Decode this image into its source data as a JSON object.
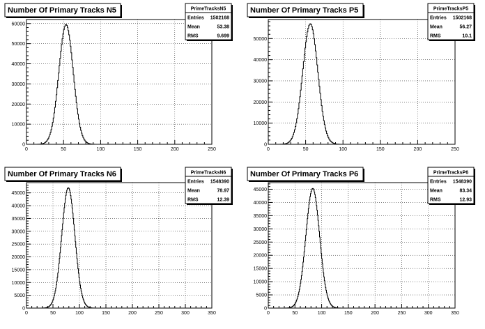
{
  "chart_data": [
    {
      "type": "histogram",
      "title": "Number Of Primary Tracks N5",
      "xlim": [
        0,
        250
      ],
      "ylim": [
        0,
        62000
      ],
      "x_ticks": [
        0,
        50,
        100,
        150,
        200,
        250
      ],
      "y_ticks": [
        0,
        10000,
        20000,
        30000,
        40000,
        50000,
        60000
      ],
      "grid": true,
      "stats": {
        "name": "PrimeTracksN5",
        "entries_label": "Entries",
        "entries": "1502168",
        "mean_label": "Mean",
        "mean": "53.38",
        "rms_label": "RMS",
        "rms": "9.699"
      },
      "peak": 59500,
      "center": 53.38,
      "sigma": 9.7
    },
    {
      "type": "histogram",
      "title": "Number Of Primary Tracks P5",
      "xlim": [
        0,
        250
      ],
      "ylim": [
        0,
        59000
      ],
      "x_ticks": [
        0,
        50,
        100,
        150,
        200,
        250
      ],
      "y_ticks": [
        0,
        10000,
        20000,
        30000,
        40000,
        50000
      ],
      "grid": true,
      "stats": {
        "name": "PrimeTracksP5",
        "entries_label": "Entries",
        "entries": "1502168",
        "mean_label": "Mean",
        "mean": "56.27",
        "rms_label": "RMS",
        "rms": "10.1"
      },
      "peak": 57000,
      "center": 56.27,
      "sigma": 10.1
    },
    {
      "type": "histogram",
      "title": "Number Of Primary Tracks N6",
      "xlim": [
        0,
        350
      ],
      "ylim": [
        0,
        49000
      ],
      "x_ticks": [
        0,
        50,
        100,
        150,
        200,
        250,
        300,
        350
      ],
      "y_ticks": [
        0,
        5000,
        10000,
        15000,
        20000,
        25000,
        30000,
        35000,
        40000,
        45000
      ],
      "grid": true,
      "stats": {
        "name": "PrimeTracksN6",
        "entries_label": "Entries",
        "entries": "1548390",
        "mean_label": "Mean",
        "mean": "78.97",
        "rms_label": "RMS",
        "rms": "12.39"
      },
      "peak": 47000,
      "center": 78.97,
      "sigma": 12.4
    },
    {
      "type": "histogram",
      "title": "Number Of Primary Tracks P6",
      "xlim": [
        0,
        350
      ],
      "ylim": [
        0,
        47500
      ],
      "x_ticks": [
        0,
        50,
        100,
        150,
        200,
        250,
        300,
        350
      ],
      "y_ticks": [
        0,
        5000,
        10000,
        15000,
        20000,
        25000,
        30000,
        35000,
        40000,
        45000
      ],
      "grid": true,
      "stats": {
        "name": "PrimeTracksP6",
        "entries_label": "Entries",
        "entries": "1548390",
        "mean_label": "Mean",
        "mean": "83.34",
        "rms_label": "RMS",
        "rms": "12.93"
      },
      "peak": 45300,
      "center": 83.34,
      "sigma": 12.9
    }
  ]
}
